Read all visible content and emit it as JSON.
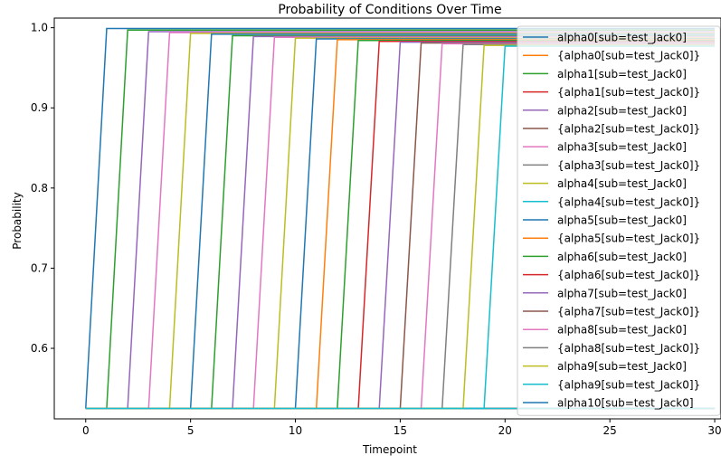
{
  "chart_data": {
    "type": "line",
    "title": "Probability of Conditions Over Time",
    "xlabel": "Timepoint",
    "ylabel": "Probability",
    "xlim": [
      -1.5,
      30.3
    ],
    "ylim": [
      0.512,
      1.012
    ],
    "xticks": [
      0,
      5,
      10,
      15,
      20,
      25,
      30
    ],
    "xtick_labels": [
      "0",
      "5",
      "10",
      "15",
      "20",
      "25",
      "30"
    ],
    "yticks": [
      0.6,
      0.7,
      0.8,
      0.9,
      1.0
    ],
    "ytick_labels": [
      "0.6",
      "0.7",
      "0.8",
      "0.9",
      "1.0"
    ],
    "grid": false,
    "legend_position": "top-right",
    "colors": [
      "#1f77b4",
      "#ff7f0e",
      "#2ca02c",
      "#d62728",
      "#9467bd",
      "#8c564b",
      "#e377c2",
      "#7f7f7f",
      "#bcbd22",
      "#17becf"
    ],
    "low_value": 0.525,
    "series": [
      {
        "name": "alpha0[sub=test_Jack0]",
        "x": [
          0,
          1,
          30
        ],
        "y": [
          0.525,
          0.999,
          0.999
        ]
      },
      {
        "name": "{alpha0[sub=test_Jack0]}",
        "x": [
          0,
          1,
          30
        ],
        "y": [
          0.525,
          0.525,
          0.525
        ]
      },
      {
        "name": "alpha1[sub=test_Jack0]",
        "x": [
          0,
          1,
          2,
          30
        ],
        "y": [
          0.525,
          0.525,
          0.997,
          0.997
        ]
      },
      {
        "name": "{alpha1[sub=test_Jack0]}",
        "x": [
          0,
          2,
          30
        ],
        "y": [
          0.525,
          0.525,
          0.525
        ]
      },
      {
        "name": "alpha2[sub=test_Jack0]",
        "x": [
          0,
          2,
          3,
          30
        ],
        "y": [
          0.525,
          0.525,
          0.995,
          0.995
        ]
      },
      {
        "name": "{alpha2[sub=test_Jack0]}",
        "x": [
          0,
          3,
          30
        ],
        "y": [
          0.525,
          0.525,
          0.525
        ]
      },
      {
        "name": "alpha3[sub=test_Jack0]",
        "x": [
          0,
          3,
          4,
          30
        ],
        "y": [
          0.525,
          0.525,
          0.994,
          0.994
        ]
      },
      {
        "name": "{alpha3[sub=test_Jack0]}",
        "x": [
          0,
          4,
          30
        ],
        "y": [
          0.525,
          0.525,
          0.525
        ]
      },
      {
        "name": "alpha4[sub=test_Jack0]",
        "x": [
          0,
          4,
          5,
          30
        ],
        "y": [
          0.525,
          0.525,
          0.993,
          0.993
        ]
      },
      {
        "name": "{alpha4[sub=test_Jack0]}",
        "x": [
          0,
          5,
          30
        ],
        "y": [
          0.525,
          0.525,
          0.525
        ]
      },
      {
        "name": "alpha5[sub=test_Jack0]",
        "x": [
          0,
          5,
          6,
          30
        ],
        "y": [
          0.525,
          0.525,
          0.992,
          0.992
        ]
      },
      {
        "name": "{alpha5[sub=test_Jack0]}",
        "x": [
          0,
          6,
          30
        ],
        "y": [
          0.525,
          0.525,
          0.525
        ]
      },
      {
        "name": "alpha6[sub=test_Jack0]",
        "x": [
          0,
          6,
          7,
          30
        ],
        "y": [
          0.525,
          0.525,
          0.99,
          0.99
        ]
      },
      {
        "name": "{alpha6[sub=test_Jack0]}",
        "x": [
          0,
          7,
          30
        ],
        "y": [
          0.525,
          0.525,
          0.525
        ]
      },
      {
        "name": "alpha7[sub=test_Jack0]",
        "x": [
          0,
          7,
          8,
          30
        ],
        "y": [
          0.525,
          0.525,
          0.989,
          0.989
        ]
      },
      {
        "name": "{alpha7[sub=test_Jack0]}",
        "x": [
          0,
          8,
          30
        ],
        "y": [
          0.525,
          0.525,
          0.525
        ]
      },
      {
        "name": "alpha8[sub=test_Jack0]",
        "x": [
          0,
          8,
          9,
          30
        ],
        "y": [
          0.525,
          0.525,
          0.988,
          0.988
        ]
      },
      {
        "name": "{alpha8[sub=test_Jack0]}",
        "x": [
          0,
          9,
          30
        ],
        "y": [
          0.525,
          0.525,
          0.525
        ]
      },
      {
        "name": "alpha9[sub=test_Jack0]",
        "x": [
          0,
          9,
          10,
          30
        ],
        "y": [
          0.525,
          0.525,
          0.987,
          0.987
        ]
      },
      {
        "name": "{alpha9[sub=test_Jack0]}",
        "x": [
          0,
          10,
          30
        ],
        "y": [
          0.525,
          0.525,
          0.525
        ]
      },
      {
        "name": "alpha10[sub=test_Jack0]",
        "x": [
          0,
          10,
          11,
          30
        ],
        "y": [
          0.525,
          0.525,
          0.986,
          0.986
        ]
      },
      {
        "name": "",
        "x": [
          0,
          11,
          12,
          30
        ],
        "y": [
          0.525,
          0.525,
          0.985,
          0.985
        ]
      },
      {
        "name": "",
        "x": [
          0,
          12,
          13,
          30
        ],
        "y": [
          0.525,
          0.525,
          0.984,
          0.984
        ]
      },
      {
        "name": "",
        "x": [
          0,
          13,
          14,
          30
        ],
        "y": [
          0.525,
          0.525,
          0.983,
          0.983
        ]
      },
      {
        "name": "",
        "x": [
          0,
          14,
          15,
          30
        ],
        "y": [
          0.525,
          0.525,
          0.982,
          0.982
        ]
      },
      {
        "name": "",
        "x": [
          0,
          15,
          16,
          30
        ],
        "y": [
          0.525,
          0.525,
          0.981,
          0.981
        ]
      },
      {
        "name": "",
        "x": [
          0,
          16,
          17,
          30
        ],
        "y": [
          0.525,
          0.525,
          0.98,
          0.98
        ]
      },
      {
        "name": "",
        "x": [
          0,
          17,
          18,
          30
        ],
        "y": [
          0.525,
          0.525,
          0.979,
          0.979
        ]
      },
      {
        "name": "",
        "x": [
          0,
          18,
          19,
          30
        ],
        "y": [
          0.525,
          0.525,
          0.978,
          0.978
        ]
      },
      {
        "name": "",
        "x": [
          0,
          19,
          20,
          30
        ],
        "y": [
          0.525,
          0.525,
          0.977,
          0.977
        ]
      }
    ]
  }
}
